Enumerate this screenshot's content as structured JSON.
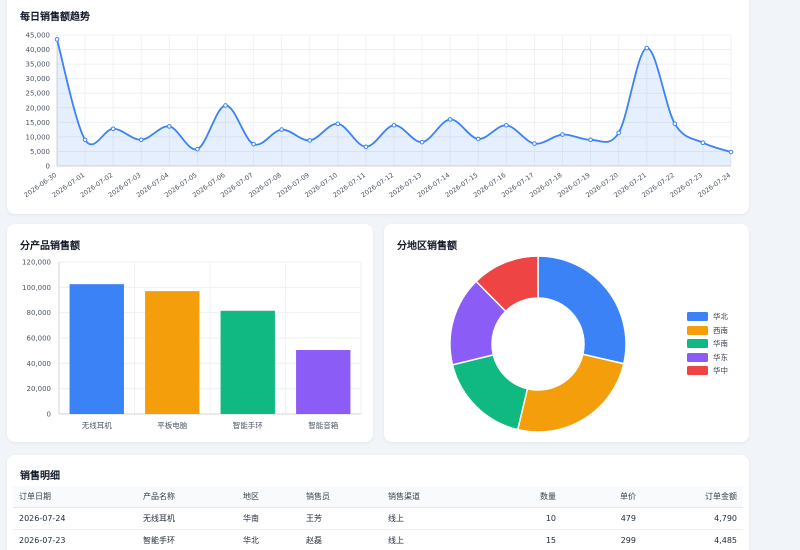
{
  "trend": {
    "title": "每日销售额趋势",
    "chart_data": {
      "type": "area",
      "x": [
        "2026-06-30",
        "2026-07-01",
        "2026-07-02",
        "2026-07-03",
        "2026-07-04",
        "2026-07-05",
        "2026-07-06",
        "2026-07-07",
        "2026-07-08",
        "2026-07-09",
        "2026-07-10",
        "2026-07-11",
        "2026-07-12",
        "2026-07-13",
        "2026-07-14",
        "2026-07-15",
        "2026-07-16",
        "2026-07-17",
        "2026-07-18",
        "2026-07-19",
        "2026-07-20",
        "2026-07-21",
        "2026-07-22",
        "2026-07-23",
        "2026-07-24"
      ],
      "values": [
        43500,
        9000,
        12800,
        9000,
        13600,
        5800,
        20800,
        7500,
        12500,
        8800,
        14500,
        6600,
        14000,
        8200,
        16000,
        9300,
        14000,
        7700,
        10800,
        9000,
        11400,
        40500,
        14500,
        8000,
        4790
      ],
      "yticks": [
        0,
        5000,
        10000,
        15000,
        20000,
        25000,
        30000,
        35000,
        40000,
        45000
      ],
      "ytick_labels": [
        "0",
        "5,000",
        "10,000",
        "15,000",
        "20,000",
        "25,000",
        "30,000",
        "35,000",
        "40,000",
        "45,000"
      ],
      "ylim": [
        0,
        45000
      ],
      "grid": true,
      "color": "#3b82f6"
    }
  },
  "product": {
    "title": "分产品销售额",
    "chart_data": {
      "type": "bar",
      "categories": [
        "无线耳机",
        "平板电脑",
        "智能手环",
        "智能音箱"
      ],
      "values": [
        102500,
        97000,
        81500,
        50500
      ],
      "colors": [
        "#3b82f6",
        "#f59e0b",
        "#10b981",
        "#8b5cf6"
      ],
      "yticks": [
        0,
        20000,
        40000,
        60000,
        80000,
        100000,
        120000
      ],
      "ytick_labels": [
        "0",
        "20,000",
        "40,000",
        "60,000",
        "80,000",
        "100,000",
        "120,000"
      ],
      "ylim": [
        0,
        120000
      ],
      "grid": true
    }
  },
  "region": {
    "title": "分地区销售额",
    "chart_data": {
      "type": "pie",
      "donut": true,
      "labels": [
        "华北",
        "西南",
        "华南",
        "华东",
        "华中"
      ],
      "values": [
        28.6,
        25.1,
        17.5,
        16.4,
        12.4
      ],
      "colors": [
        "#3b82f6",
        "#f59e0b",
        "#10b981",
        "#8b5cf6",
        "#ef4444"
      ],
      "legend": "right"
    }
  },
  "detail": {
    "title": "销售明细",
    "columns": [
      "订单日期",
      "产品名称",
      "地区",
      "销售员",
      "销售渠道",
      "数量",
      "单价",
      "订单金额"
    ],
    "rows": [
      [
        "2026-07-24",
        "无线耳机",
        "华南",
        "王芳",
        "线上",
        "10",
        "479",
        "4,790"
      ],
      [
        "2026-07-23",
        "智能手环",
        "华北",
        "赵磊",
        "线上",
        "15",
        "299",
        "4,485"
      ]
    ]
  }
}
